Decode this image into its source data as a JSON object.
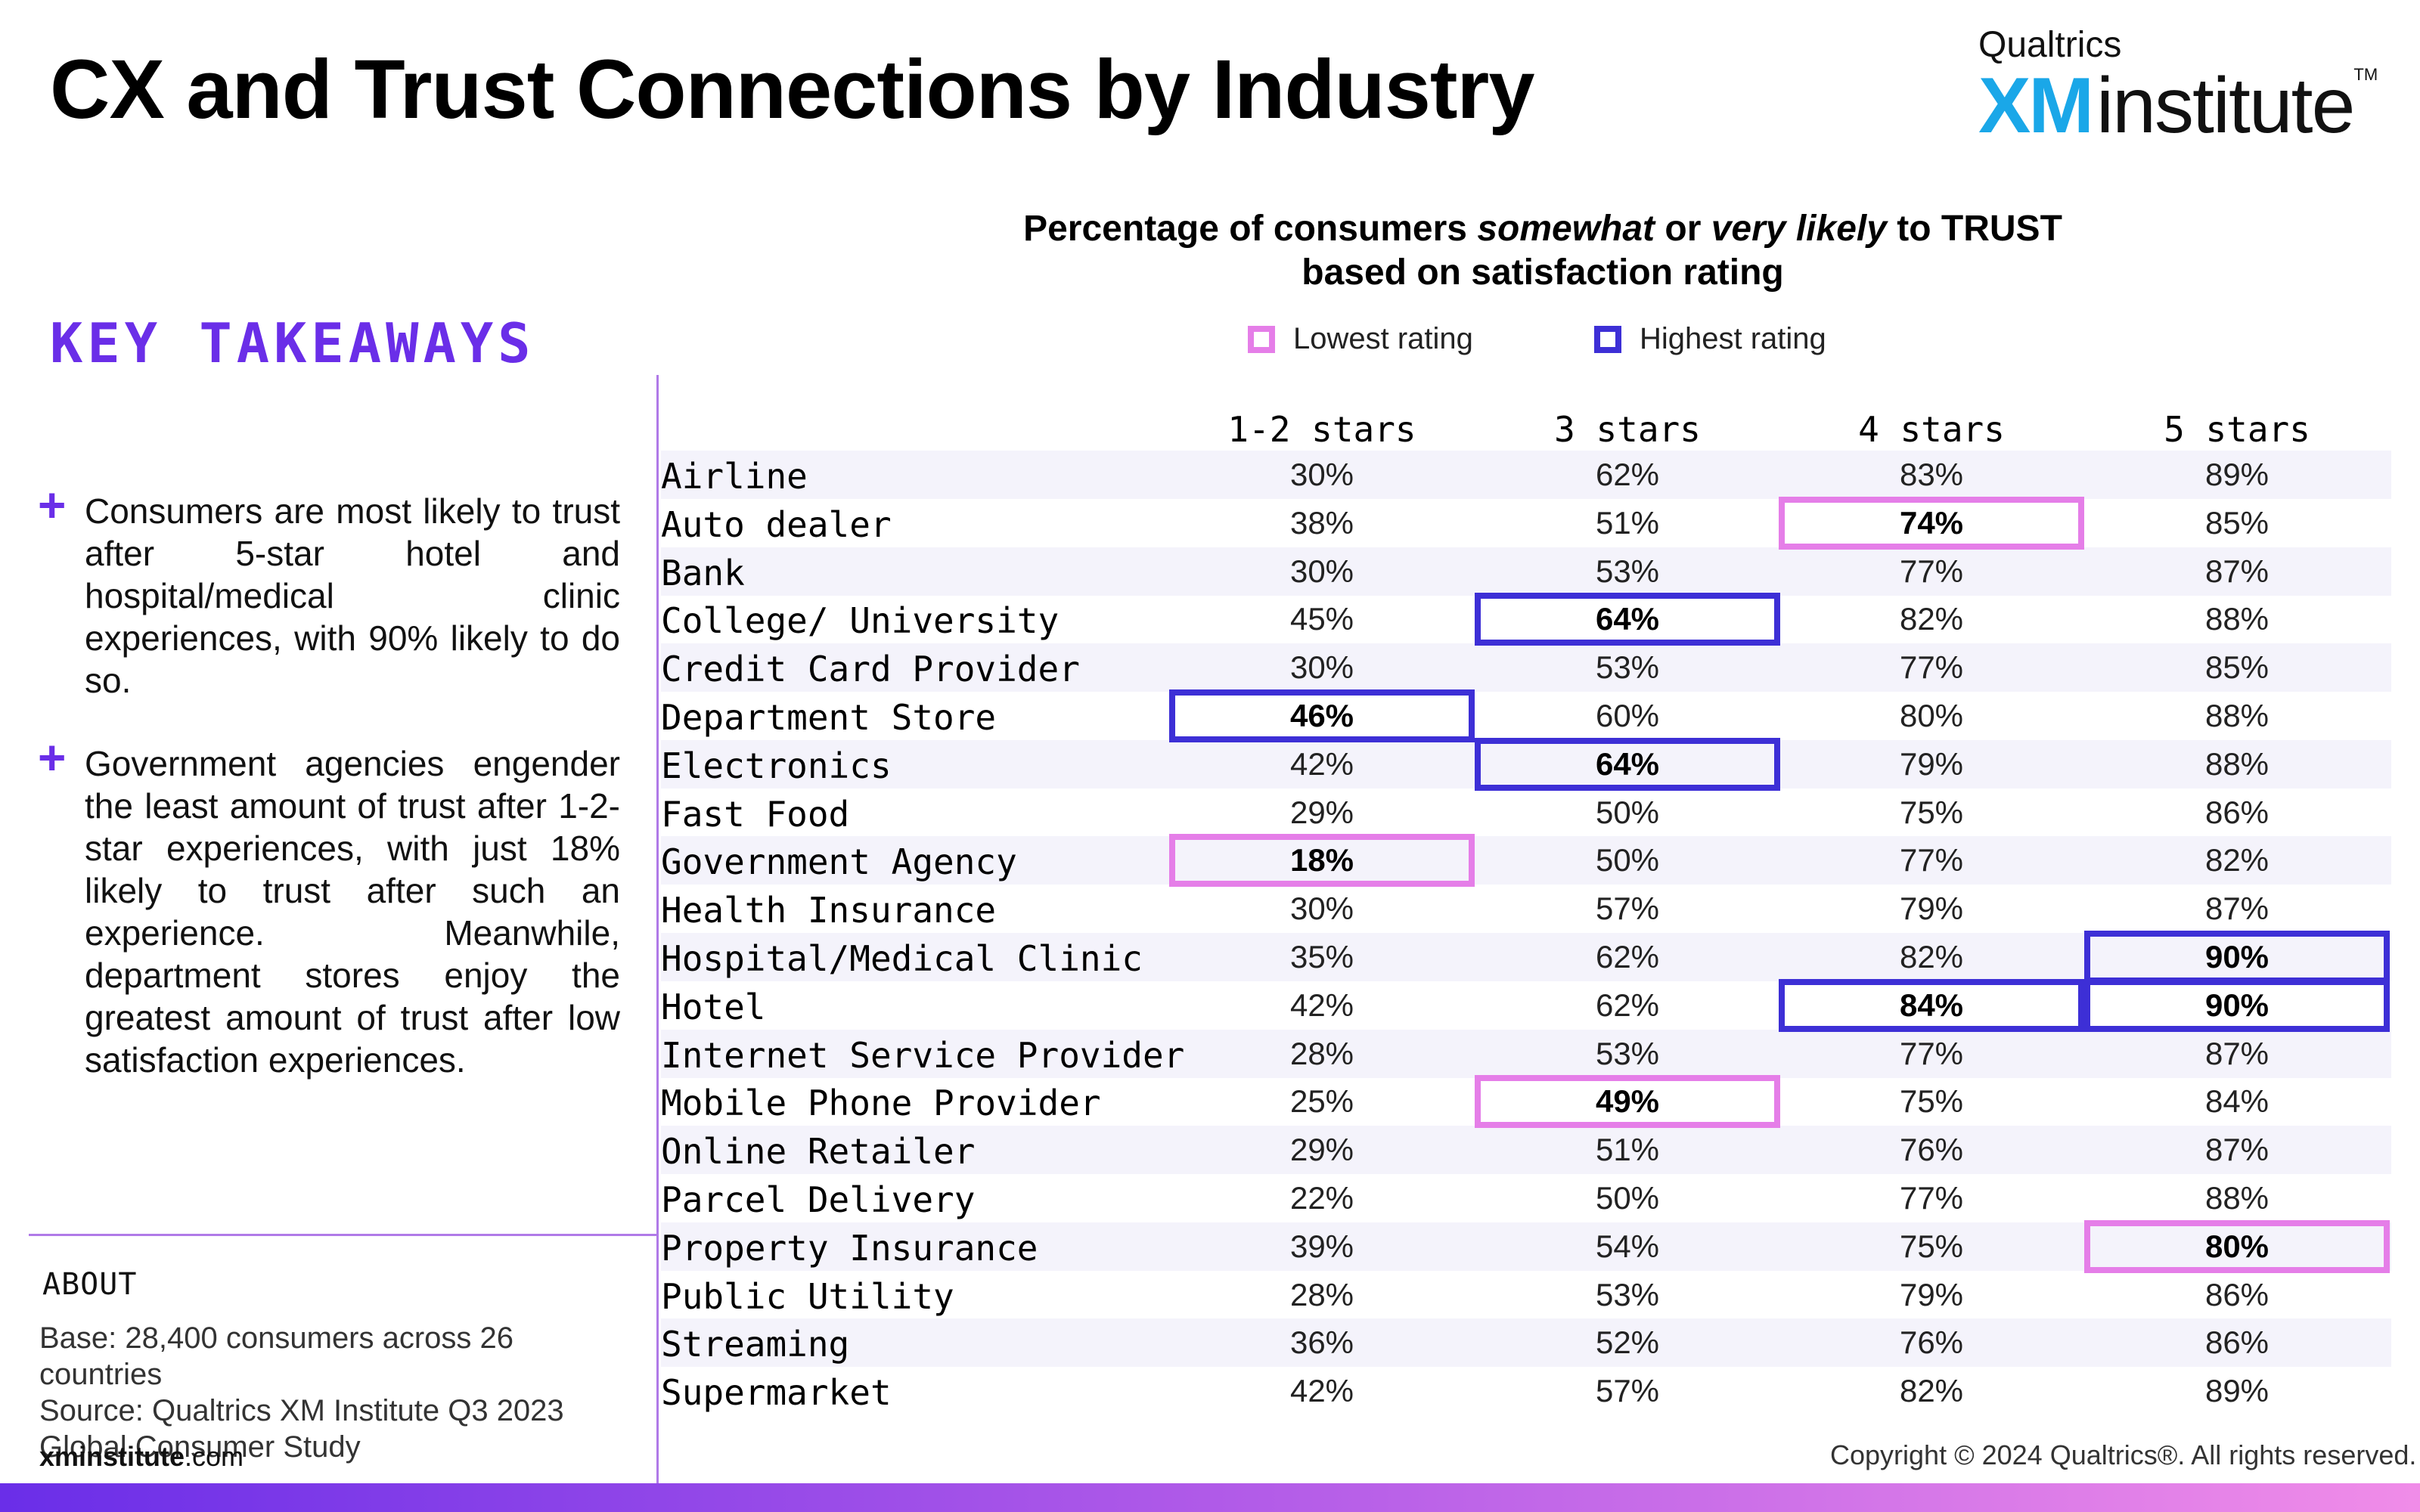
{
  "header": {
    "title": "CX and Trust Connections by Industry",
    "logo": {
      "top": "Qualtrics",
      "xm": "XM",
      "institute": "institute",
      "tm": "TM"
    }
  },
  "sidebar": {
    "heading": "KEY TAKEAWAYS",
    "takeaways": [
      "Consumers are most likely to trust after 5-star hotel and hospital/medical clinic experiences, with 90% likely to do so.",
      "Government agencies engender the least amount of trust after 1-2-star experiences, with just 18% likely to trust after such an experience. Meanwhile, department stores enjoy the greatest amount of trust after low satisfaction experiences."
    ],
    "plus_glyph": "+",
    "about_heading": "ABOUT",
    "base_label": "Base:",
    "base_text": "28,400 consumers across 26 countries",
    "source_label": "Source:",
    "source_text": "Qualtrics XM Institute Q3 2023 Global Consumer Study",
    "url_bold": "xminstitute",
    "url_rest": ".com"
  },
  "footer": {
    "copyright": "Copyright © 2024 Qualtrics®. All rights reserved."
  },
  "colors": {
    "accent": "#6a2ee8",
    "lowest": "#e57ee8",
    "highest": "#3d2fd6",
    "row_alt": "#f4f3fb",
    "logo_blue": "#1aa7e8"
  },
  "chart_data": {
    "type": "table",
    "title_parts": [
      "Percentage of consumers ",
      "somewhat",
      " or ",
      "very likely",
      " to TRUST",
      "based on satisfaction rating"
    ],
    "legend": [
      {
        "label": "Lowest rating",
        "color": "#e57ee8"
      },
      {
        "label": "Highest rating",
        "color": "#3d2fd6"
      }
    ],
    "columns": [
      "1-2 stars",
      "3 stars",
      "4 stars",
      "5 stars"
    ],
    "rows": [
      {
        "label": "Airline",
        "values": [
          "30%",
          "62%",
          "83%",
          "89%"
        ]
      },
      {
        "label": "Auto dealer",
        "values": [
          "38%",
          "51%",
          "74%",
          "85%"
        ]
      },
      {
        "label": "Bank",
        "values": [
          "30%",
          "53%",
          "77%",
          "87%"
        ]
      },
      {
        "label": "College/ University",
        "values": [
          "45%",
          "64%",
          "82%",
          "88%"
        ]
      },
      {
        "label": "Credit Card Provider",
        "values": [
          "30%",
          "53%",
          "77%",
          "85%"
        ]
      },
      {
        "label": "Department Store",
        "values": [
          "46%",
          "60%",
          "80%",
          "88%"
        ]
      },
      {
        "label": "Electronics",
        "values": [
          "42%",
          "64%",
          "79%",
          "88%"
        ]
      },
      {
        "label": "Fast Food",
        "values": [
          "29%",
          "50%",
          "75%",
          "86%"
        ]
      },
      {
        "label": "Government Agency",
        "values": [
          "18%",
          "50%",
          "77%",
          "82%"
        ]
      },
      {
        "label": "Health Insurance",
        "values": [
          "30%",
          "57%",
          "79%",
          "87%"
        ]
      },
      {
        "label": "Hospital/Medical Clinic",
        "values": [
          "35%",
          "62%",
          "82%",
          "90%"
        ]
      },
      {
        "label": "Hotel",
        "values": [
          "42%",
          "62%",
          "84%",
          "90%"
        ]
      },
      {
        "label": "Internet Service Provider",
        "values": [
          "28%",
          "53%",
          "77%",
          "87%"
        ]
      },
      {
        "label": "Mobile Phone Provider",
        "values": [
          "25%",
          "49%",
          "75%",
          "84%"
        ]
      },
      {
        "label": "Online Retailer",
        "values": [
          "29%",
          "51%",
          "76%",
          "87%"
        ]
      },
      {
        "label": "Parcel Delivery",
        "values": [
          "22%",
          "50%",
          "77%",
          "88%"
        ]
      },
      {
        "label": "Property Insurance",
        "values": [
          "39%",
          "54%",
          "75%",
          "80%"
        ]
      },
      {
        "label": "Public Utility",
        "values": [
          "28%",
          "53%",
          "79%",
          "86%"
        ]
      },
      {
        "label": "Streaming",
        "values": [
          "36%",
          "52%",
          "76%",
          "86%"
        ]
      },
      {
        "label": "Supermarket",
        "values": [
          "42%",
          "57%",
          "82%",
          "89%"
        ]
      }
    ],
    "highlights": [
      {
        "row": 1,
        "col": 2,
        "kind": "lowest"
      },
      {
        "row": 3,
        "col": 1,
        "kind": "highest"
      },
      {
        "row": 5,
        "col": 0,
        "kind": "highest"
      },
      {
        "row": 6,
        "col": 1,
        "kind": "highest"
      },
      {
        "row": 8,
        "col": 0,
        "kind": "lowest"
      },
      {
        "row": 10,
        "col": 3,
        "kind": "highest"
      },
      {
        "row": 11,
        "col": 2,
        "kind": "highest"
      },
      {
        "row": 11,
        "col": 3,
        "kind": "highest"
      },
      {
        "row": 13,
        "col": 1,
        "kind": "lowest"
      },
      {
        "row": 16,
        "col": 3,
        "kind": "lowest"
      }
    ]
  }
}
